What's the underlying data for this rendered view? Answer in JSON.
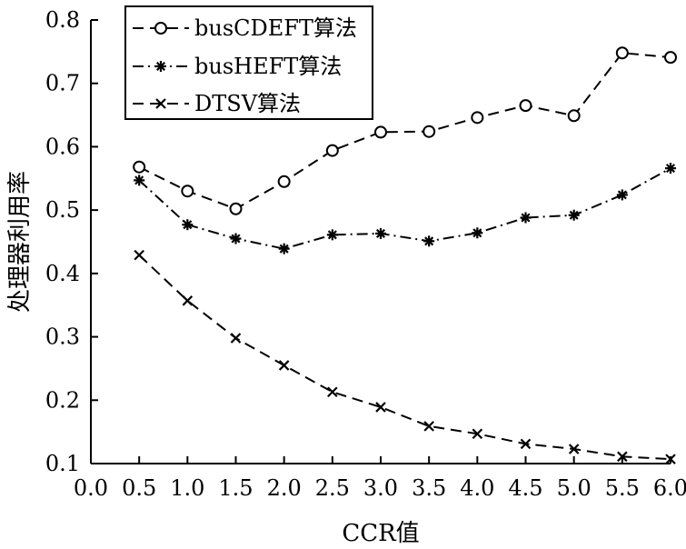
{
  "chart_data": {
    "type": "line",
    "xlabel": "CCR值",
    "ylabel": "处理器利用率",
    "xlim": [
      0.0,
      6.0
    ],
    "ylim": [
      0.1,
      0.8
    ],
    "xticks": [
      "0.0",
      "0.5",
      "1.0",
      "1.5",
      "2.0",
      "2.5",
      "3.0",
      "3.5",
      "4.0",
      "4.5",
      "5.0",
      "5.5",
      "6.0"
    ],
    "yticks": [
      "0.1",
      "0.2",
      "0.3",
      "0.4",
      "0.5",
      "0.6",
      "0.7",
      "0.8"
    ],
    "x": [
      0.5,
      1.0,
      1.5,
      2.0,
      2.5,
      3.0,
      3.5,
      4.0,
      4.5,
      5.0,
      5.5,
      6.0
    ],
    "legend_position": "top-left",
    "grid": false,
    "series": [
      {
        "name": "busCDEFT算法",
        "marker": "circle",
        "linestyle": "dashed",
        "color": "#000000",
        "values": [
          0.568,
          0.53,
          0.502,
          0.545,
          0.594,
          0.623,
          0.624,
          0.646,
          0.665,
          0.649,
          0.748,
          0.741
        ]
      },
      {
        "name": "busHEFT算法",
        "marker": "asterisk",
        "linestyle": "dashdot",
        "color": "#000000",
        "values": [
          0.547,
          0.477,
          0.455,
          0.439,
          0.461,
          0.463,
          0.451,
          0.464,
          0.488,
          0.492,
          0.524,
          0.566
        ]
      },
      {
        "name": "DTSV算法",
        "marker": "x",
        "linestyle": "dashed",
        "color": "#000000",
        "values": [
          0.429,
          0.357,
          0.298,
          0.255,
          0.213,
          0.189,
          0.159,
          0.147,
          0.131,
          0.123,
          0.111,
          0.107
        ]
      }
    ]
  }
}
